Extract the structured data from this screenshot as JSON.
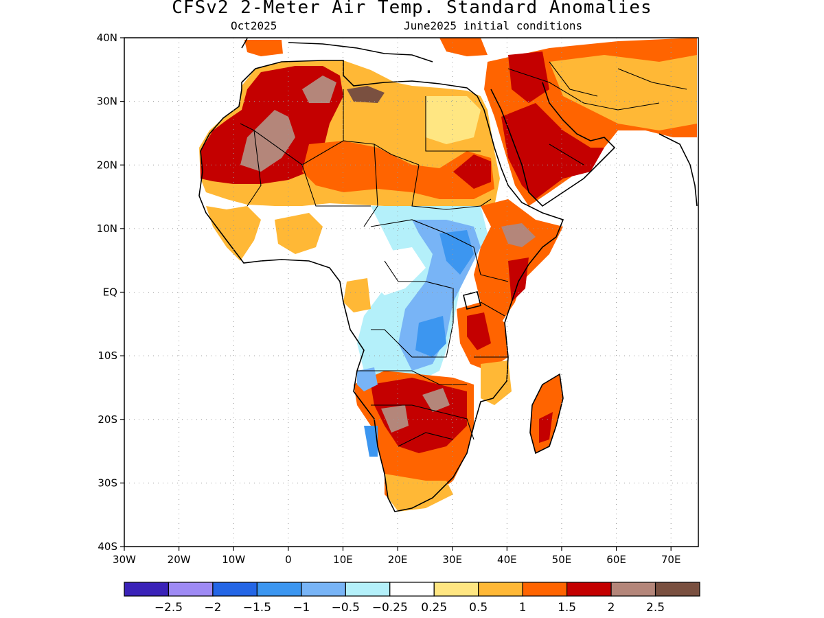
{
  "title": "CFSv2 2-Meter Air Temp. Standard Anomalies",
  "subtitle_left": "Oct2025",
  "subtitle_right": "June2025 initial conditions",
  "map": {
    "lon_range": [
      -30,
      75
    ],
    "lat_range": [
      -40,
      40
    ],
    "lat_ticks": [
      {
        "value": 40,
        "label": "40N"
      },
      {
        "value": 30,
        "label": "30N"
      },
      {
        "value": 20,
        "label": "20N"
      },
      {
        "value": 10,
        "label": "10N"
      },
      {
        "value": 0,
        "label": "EQ"
      },
      {
        "value": -10,
        "label": "10S"
      },
      {
        "value": -20,
        "label": "20S"
      },
      {
        "value": -30,
        "label": "30S"
      },
      {
        "value": -40,
        "label": "40S"
      }
    ],
    "lon_ticks": [
      {
        "value": -30,
        "label": "30W"
      },
      {
        "value": -20,
        "label": "20W"
      },
      {
        "value": -10,
        "label": "10W"
      },
      {
        "value": 0,
        "label": "0"
      },
      {
        "value": 10,
        "label": "10E"
      },
      {
        "value": 20,
        "label": "20E"
      },
      {
        "value": 30,
        "label": "30E"
      },
      {
        "value": 40,
        "label": "40E"
      },
      {
        "value": 50,
        "label": "50E"
      },
      {
        "value": 60,
        "label": "60E"
      },
      {
        "value": 70,
        "label": "70E"
      }
    ],
    "grid": "dotted"
  },
  "colorbar": {
    "colors": [
      "#3a22b8",
      "#9e8af4",
      "#2466e6",
      "#3c96f0",
      "#78b4f6",
      "#b4f0fa",
      "#ffffff",
      "#ffe682",
      "#ffb836",
      "#ff6400",
      "#c40000",
      "#b4867a",
      "#7a5040"
    ],
    "labels": [
      "−2.5",
      "−2",
      "−1.5",
      "−1",
      "−0.5",
      "−0.25",
      "0.25",
      "0.5",
      "1",
      "1.5",
      "2",
      "2.5"
    ]
  },
  "regions": [
    {
      "name": "sahara",
      "color": "#c40000"
    },
    {
      "name": "sahara-light",
      "color": "#ffb836"
    },
    {
      "name": "sahel",
      "color": "#ff6400"
    },
    {
      "name": "central-africa-cool",
      "color": "#78b4f6"
    },
    {
      "name": "horn-of-africa",
      "color": "#ff6400"
    },
    {
      "name": "arabia",
      "color": "#c40000"
    },
    {
      "name": "southern-africa",
      "color": "#ff6400"
    },
    {
      "name": "madagascar",
      "color": "#ff6400"
    }
  ]
}
